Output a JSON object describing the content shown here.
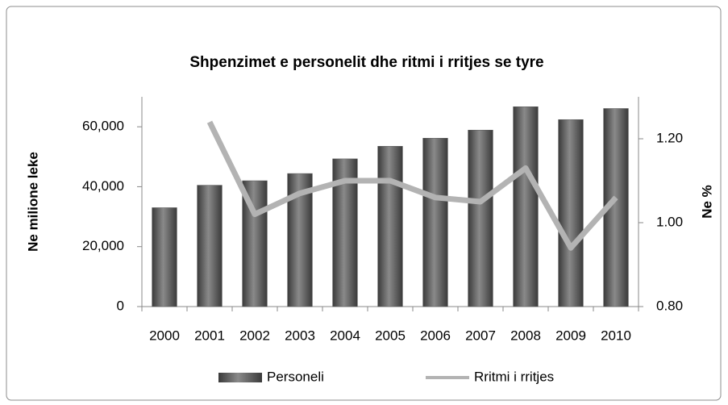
{
  "chart_data": {
    "type": "bar",
    "title": "Shpenzimet e personelit dhe ritmi i rritjes se tyre",
    "ylabel": "Ne milione leke",
    "y2label": "Ne %",
    "categories": [
      "2000",
      "2001",
      "2002",
      "2003",
      "2004",
      "2005",
      "2006",
      "2007",
      "2008",
      "2009",
      "2010"
    ],
    "series": [
      {
        "name": "Personeli",
        "type": "bar",
        "color": "#5a5a5a",
        "values": [
          33000,
          40500,
          42000,
          44400,
          49300,
          53500,
          56200,
          58900,
          66700,
          62400,
          66100
        ]
      },
      {
        "name": "Rritmi i rritjes",
        "type": "line",
        "axis": "y2",
        "color": "#b3b3b3",
        "values": [
          null,
          1.24,
          1.02,
          1.07,
          1.1,
          1.1,
          1.06,
          1.05,
          1.13,
          0.94,
          1.06
        ]
      }
    ],
    "ylim": [
      0,
      70000
    ],
    "yticks": [
      0,
      {
        "value": 20000,
        "label": "20,000"
      },
      {
        "value": 40000,
        "label": "40,000"
      },
      {
        "value": 60000,
        "label": "60,000"
      }
    ],
    "y2lim": [
      0.8,
      1.3
    ],
    "y2ticks": [
      {
        "value": 0.8,
        "label": "0.80"
      },
      {
        "value": 1.0,
        "label": "1.00"
      },
      {
        "value": 1.2,
        "label": "1.20"
      }
    ],
    "legend": "bottom"
  }
}
